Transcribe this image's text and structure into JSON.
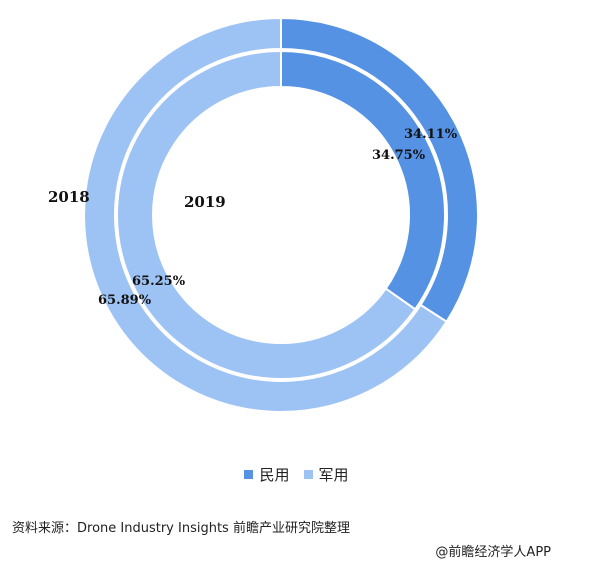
{
  "chart_data": {
    "type": "doughnut",
    "categories": [
      "民用",
      "军用"
    ],
    "rings": [
      {
        "name": "2018",
        "values": [
          34.11,
          65.89
        ],
        "labels": [
          "34.11%",
          "65.89%"
        ]
      },
      {
        "name": "2019",
        "values": [
          34.75,
          65.25
        ],
        "labels": [
          "34.75%",
          "65.25%"
        ]
      }
    ],
    "colors": [
      "#5592E3",
      "#9DC3F5"
    ],
    "legend_position": "bottom"
  },
  "legend": {
    "items": [
      {
        "label": "民用",
        "color": "#5592E3"
      },
      {
        "label": "军用",
        "color": "#9DC3F5"
      }
    ]
  },
  "source": "资料来源：Drone Industry Insights 前瞻产业研究院整理",
  "credit": "@前瞻经济学人APP"
}
